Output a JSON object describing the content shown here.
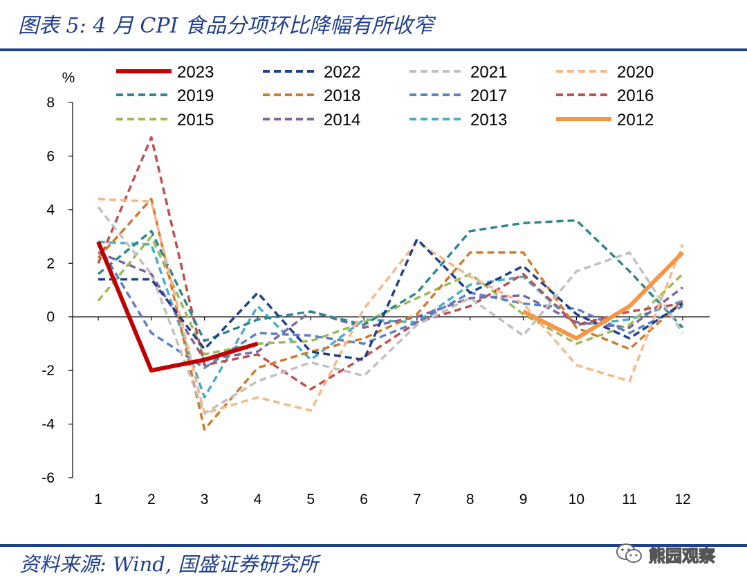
{
  "header": {
    "title": "图表 5:  4 月 CPI 食品分项环比降幅有所收窄"
  },
  "footer": {
    "source": "资料来源:  Wind,  国盛证券研究所"
  },
  "watermark": {
    "text": "熊园观察",
    "icon": "wechat-icon"
  },
  "chart_data": {
    "type": "line",
    "title": "",
    "unit_label": "%",
    "xlabel": "",
    "ylabel": "",
    "x": [
      1,
      2,
      3,
      4,
      5,
      6,
      7,
      8,
      9,
      10,
      11,
      12
    ],
    "ylim": [
      -6,
      8
    ],
    "yticks": [
      -6,
      -4,
      -2,
      0,
      2,
      4,
      6,
      8
    ],
    "grid": false,
    "legend_position": "top",
    "series": [
      {
        "name": "2023",
        "color": "#c00000",
        "style": "solid",
        "width": 6,
        "values": [
          2.8,
          -2.0,
          -1.6,
          -1.0,
          null,
          null,
          null,
          null,
          null,
          null,
          null,
          null
        ]
      },
      {
        "name": "2022",
        "color": "#1f3f8f",
        "style": "dashed",
        "values": [
          1.4,
          1.4,
          -1.2,
          0.9,
          -1.3,
          -1.6,
          2.9,
          0.9,
          1.9,
          0.1,
          -0.8,
          0.5
        ]
      },
      {
        "name": "2021",
        "color": "#c0c0c0",
        "style": "dashed",
        "values": [
          4.1,
          1.6,
          -3.6,
          -2.4,
          -1.7,
          -2.2,
          -0.3,
          0.7,
          -0.7,
          1.7,
          2.4,
          -0.6
        ]
      },
      {
        "name": "2020",
        "color": "#f8b889",
        "style": "dashed",
        "values": [
          4.4,
          4.3,
          -3.6,
          -3.0,
          -3.5,
          0.3,
          2.8,
          1.5,
          0.5,
          -1.8,
          -2.4,
          2.7
        ]
      },
      {
        "name": "2019",
        "color": "#2e8690",
        "style": "dashed",
        "values": [
          1.6,
          3.2,
          -0.9,
          -0.1,
          0.2,
          -0.3,
          0.9,
          3.2,
          3.5,
          3.6,
          1.7,
          -0.4
        ]
      },
      {
        "name": "2018",
        "color": "#d07a2c",
        "style": "dashed",
        "values": [
          2.2,
          4.4,
          -4.2,
          -1.9,
          -1.3,
          -0.8,
          0.1,
          2.4,
          2.4,
          -0.4,
          -1.2,
          0.6
        ]
      },
      {
        "name": "2017",
        "color": "#5b82c7",
        "style": "dashed",
        "values": [
          2.7,
          -0.6,
          -1.9,
          -0.6,
          -0.7,
          -1.0,
          -0.2,
          0.9,
          0.5,
          0.3,
          -0.6,
          0.4
        ]
      },
      {
        "name": "2016",
        "color": "#c0504d",
        "style": "dashed",
        "values": [
          2.0,
          6.7,
          -1.8,
          -1.4,
          -2.7,
          -1.5,
          -0.2,
          0.4,
          1.6,
          -0.3,
          0.2,
          0.5
        ]
      },
      {
        "name": "2015",
        "color": "#9bbb59",
        "style": "dashed",
        "values": [
          0.6,
          3.0,
          -1.4,
          -1.0,
          -0.9,
          -0.2,
          0.7,
          1.6,
          0.1,
          -1.0,
          -0.3,
          1.6
        ]
      },
      {
        "name": "2014",
        "color": "#8064a2",
        "style": "dashed",
        "values": [
          2.4,
          1.6,
          -1.6,
          -1.3,
          0.2,
          -0.4,
          0.0,
          0.7,
          0.8,
          -0.2,
          -0.4,
          1.1
        ]
      },
      {
        "name": "2013",
        "color": "#4bacc6",
        "style": "dashed",
        "values": [
          2.8,
          2.7,
          -3.0,
          0.4,
          -1.6,
          -0.1,
          -0.2,
          1.2,
          1.5,
          -0.3,
          -0.1,
          0.6
        ]
      },
      {
        "name": "2012",
        "color": "#f79646",
        "style": "solid",
        "width": 6,
        "values": [
          null,
          null,
          null,
          null,
          null,
          null,
          null,
          null,
          0.2,
          -0.8,
          0.4,
          2.4
        ]
      }
    ]
  }
}
